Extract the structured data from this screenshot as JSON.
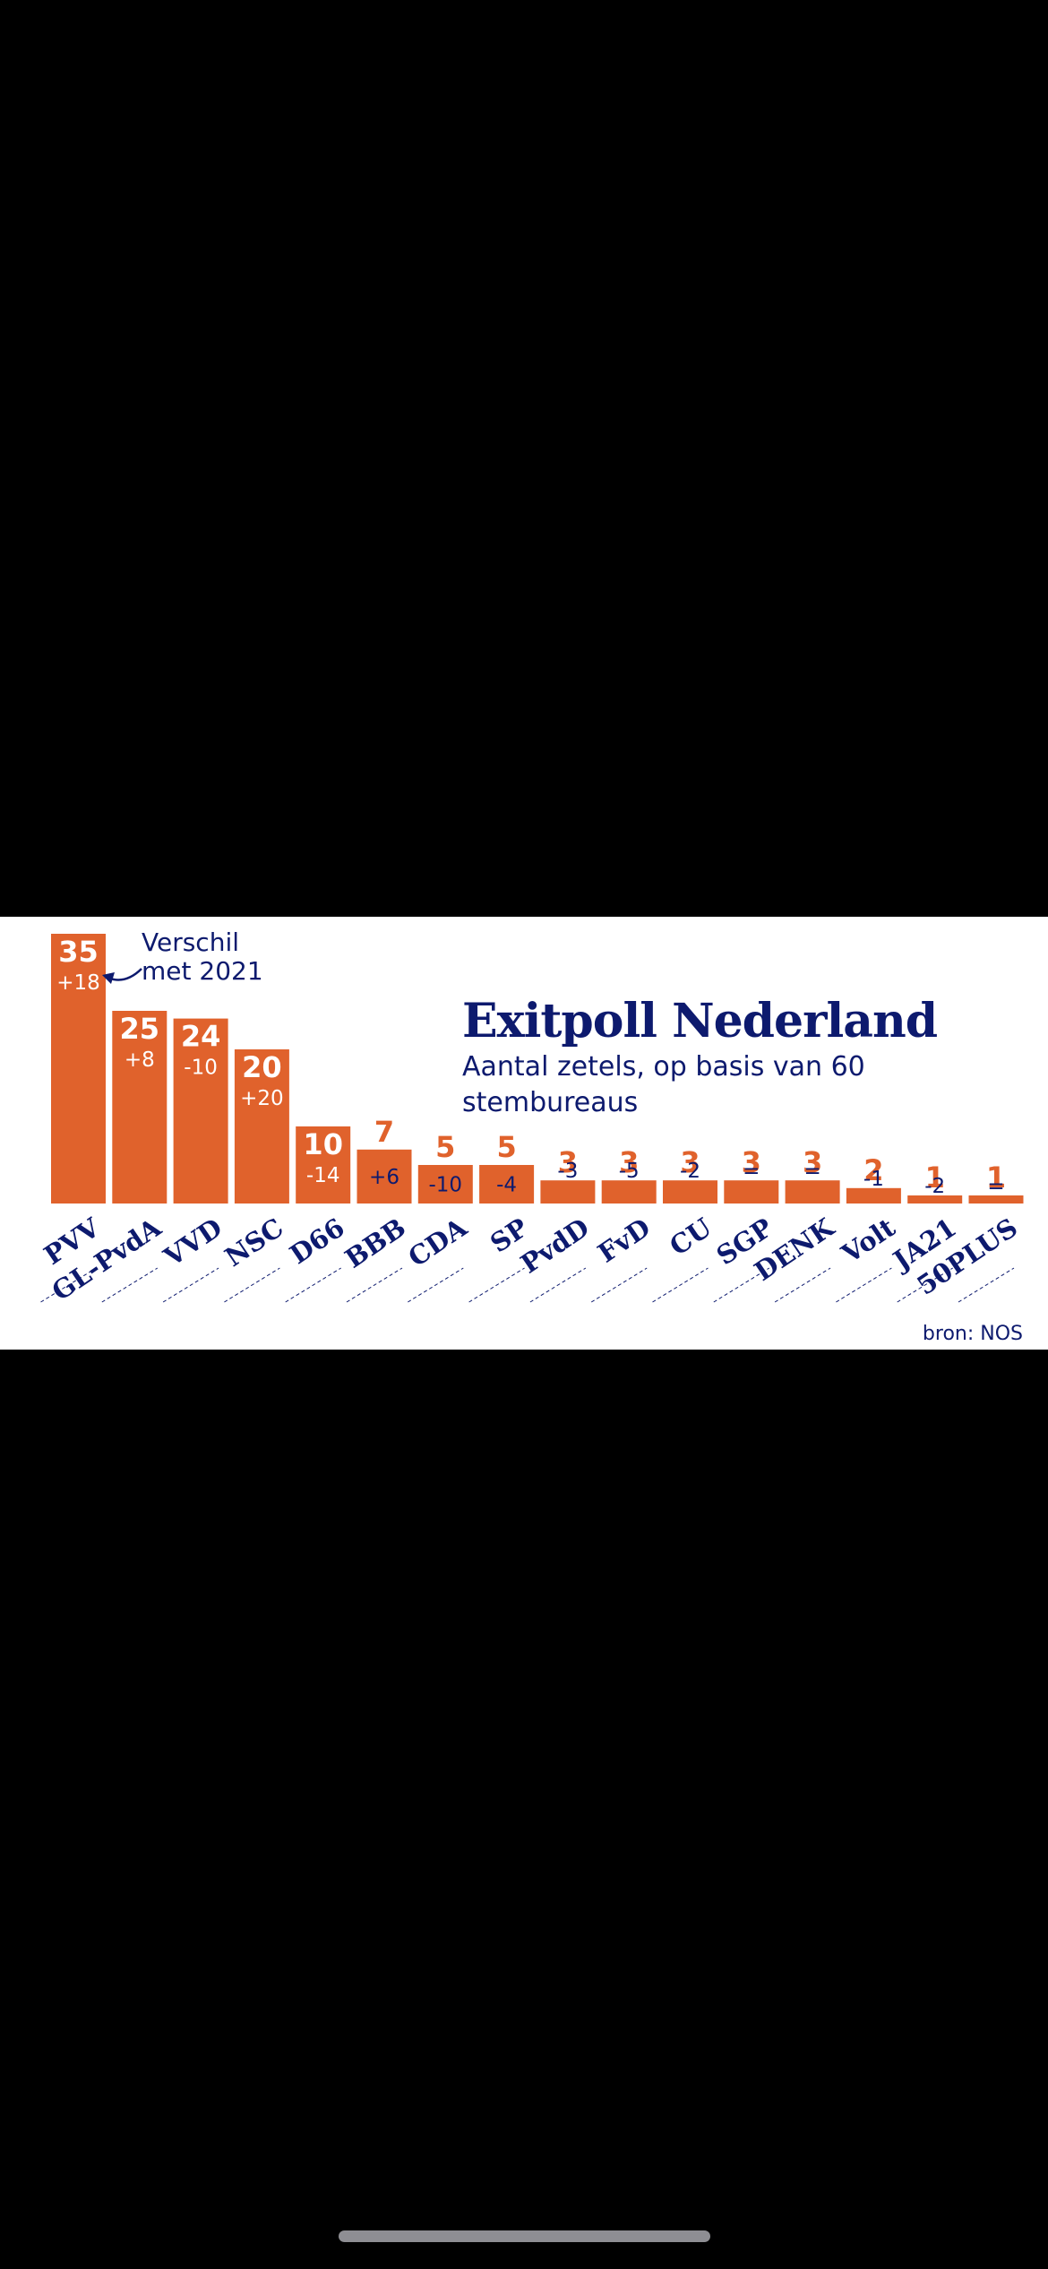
{
  "chart": {
    "title": "Exitpoll Nederland",
    "subtitle": "Aantal zetels, op basis van 60 stembureaus",
    "annotation": "Verschil met 2021",
    "source": "bron: NOS"
  },
  "colors": {
    "bar": "#e0622c",
    "text": "#0d1a6e",
    "label_on_bar": "#ffffff",
    "background": "#ffffff",
    "screen": "#000000"
  },
  "chart_data": {
    "type": "bar",
    "title": "Exitpoll Nederland",
    "subtitle": "Aantal zetels, op basis van 60 stembureaus",
    "categories": [
      "PVV",
      "GL-PvdA",
      "VVD",
      "NSC",
      "D66",
      "BBB",
      "CDA",
      "SP",
      "PvdD",
      "FvD",
      "CU",
      "SGP",
      "DENK",
      "Volt",
      "JA21",
      "50PLUS"
    ],
    "values": [
      35,
      25,
      24,
      20,
      10,
      7,
      5,
      5,
      3,
      3,
      3,
      3,
      3,
      2,
      1,
      1
    ],
    "changes": [
      "+18",
      "+8",
      "-10",
      "+20",
      "-14",
      "+6",
      "-10",
      "-4",
      "-3",
      "-5",
      "-2",
      "=",
      "=",
      "-1",
      "-2",
      "="
    ],
    "annotation": "Verschil met 2021",
    "source": "bron: NOS",
    "ylim": [
      0,
      35
    ],
    "grid": false,
    "legend": "none"
  }
}
